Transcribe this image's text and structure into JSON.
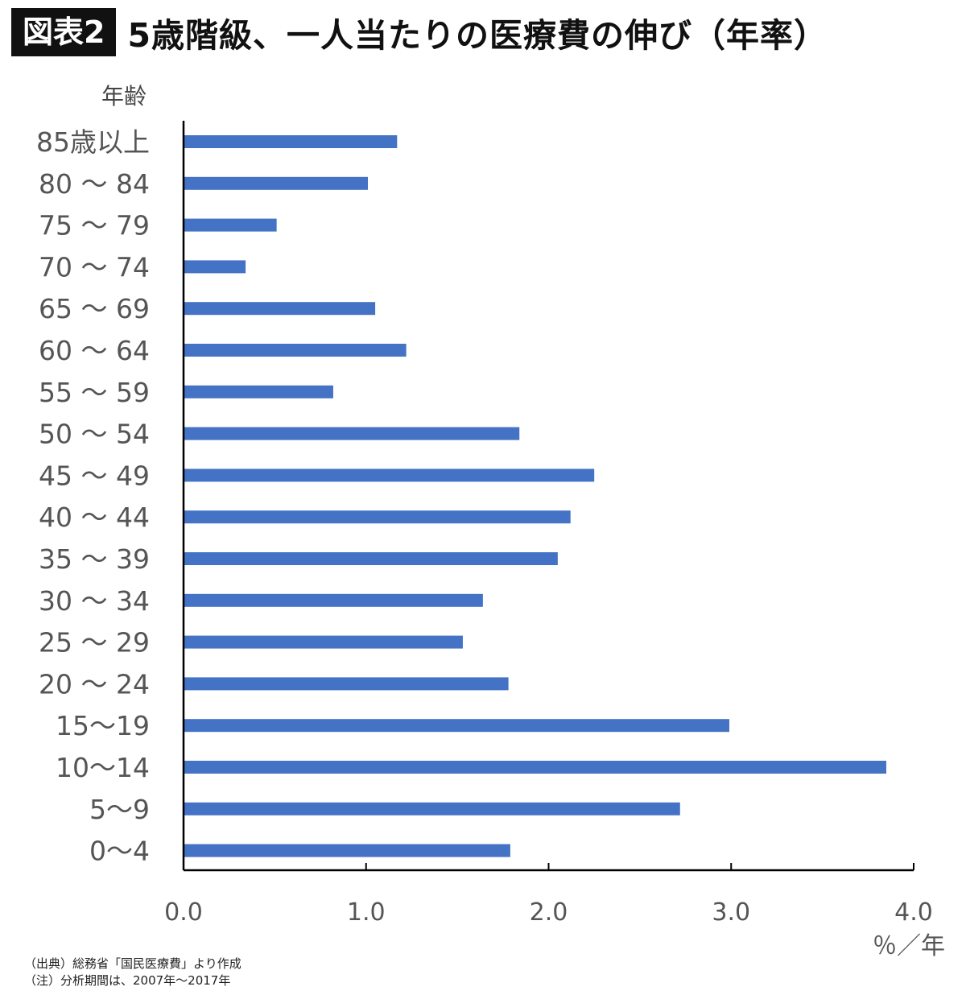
{
  "header": {
    "badge": "図表2",
    "title": "5歳階級、一人当たりの医療費の伸び（年率）"
  },
  "chart_data": {
    "type": "bar",
    "orientation": "horizontal",
    "title": "5歳階級、一人当たりの医療費の伸び（年率）",
    "ylabel": "年齢",
    "xlabel": "％／年",
    "xlim": [
      0,
      4
    ],
    "xticks": [
      "0.0",
      "1.0",
      "2.0",
      "3.0",
      "4.0"
    ],
    "grid": false,
    "color": "#4472c4",
    "categories": [
      "85歳以上",
      "80 〜 84",
      "75 〜 79",
      "70 〜 74",
      "65 〜 69",
      "60 〜 64",
      "55 〜 59",
      "50 〜 54",
      "45 〜 49",
      "40 〜 44",
      "35 〜 39",
      "30 〜 34",
      "25 〜 29",
      "20 〜 24",
      "15〜19",
      "10〜14",
      "5〜9",
      "0〜4"
    ],
    "values": [
      1.17,
      1.01,
      0.51,
      0.34,
      1.05,
      1.22,
      0.82,
      1.84,
      2.25,
      2.12,
      2.05,
      1.64,
      1.53,
      1.78,
      2.99,
      3.85,
      2.72,
      1.79
    ]
  },
  "notes": {
    "source": "（出典）総務省「国民医療費」より作成",
    "period": "（注）分析期間は、2007年〜2017年"
  }
}
